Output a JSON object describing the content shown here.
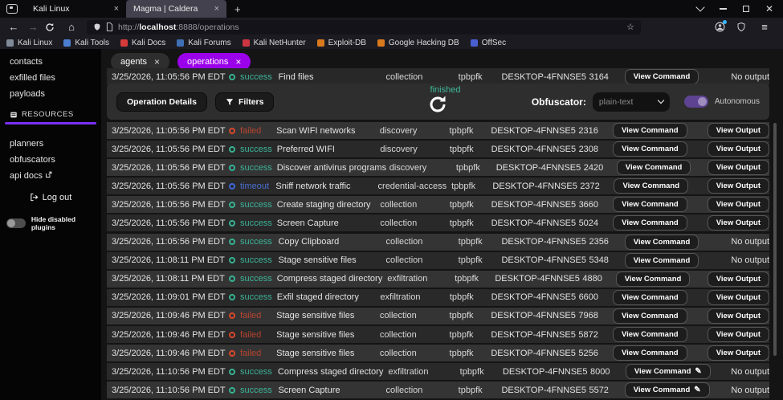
{
  "browser": {
    "tabs": [
      {
        "title": "Kali Linux"
      },
      {
        "title": "Magma | Caldera"
      }
    ],
    "new_tab_label": "+",
    "url": {
      "scheme": "http://",
      "host": "localhost",
      "path": ":8888/operations"
    },
    "bookmarks": [
      {
        "label": "Kali Linux",
        "color": "#7f8a99"
      },
      {
        "label": "Kali Tools",
        "color": "#4d7fd0"
      },
      {
        "label": "Kali Docs",
        "color": "#d63a3a"
      },
      {
        "label": "Kali Forums",
        "color": "#3f6fb5"
      },
      {
        "label": "Kali NetHunter",
        "color": "#cf3540"
      },
      {
        "label": "Exploit-DB",
        "color": "#d97a1e"
      },
      {
        "label": "Google Hacking DB",
        "color": "#d97a1e"
      },
      {
        "label": "OffSec",
        "color": "#4a5fd0"
      }
    ]
  },
  "sidebar": {
    "items": [
      "contacts",
      "exfilled files",
      "payloads"
    ],
    "section_title": "RESOURCES",
    "resources_items": [
      "planners",
      "obfuscators",
      "api docs"
    ],
    "logout_label": "Log out",
    "hide_plugins_label": "Hide disabled plugins"
  },
  "content": {
    "chips": [
      {
        "label": "agents",
        "active": false
      },
      {
        "label": "operations",
        "active": true
      }
    ],
    "toolbar": {
      "operation_details_label": "Operation Details",
      "filters_label": "Filters",
      "state_label": "finished",
      "obfuscator_label": "Obfuscator:",
      "obfuscator_value": "plain-text",
      "autonomous_label": "Autonomous"
    },
    "partial_row": {
      "time": "3/25/2026, 11:05:56 PM EDT",
      "status": "success",
      "ability": "Find files",
      "tactic": "collection",
      "agent": "tpbpfk",
      "host": "DESKTOP-4FNNSE5",
      "pid": "3164",
      "command": "View Command",
      "command_edit": false,
      "output_type": "text",
      "output": "No output"
    },
    "table": {
      "rows": [
        {
          "time": "3/25/2026, 11:05:56 PM EDT",
          "status": "failed",
          "ability": "Scan WIFI networks",
          "tactic": "discovery",
          "agent": "tpbpfk",
          "host": "DESKTOP-4FNNSE5",
          "pid": "2316",
          "command": "View Command",
          "command_edit": false,
          "output_type": "button",
          "output": "View Output"
        },
        {
          "time": "3/25/2026, 11:05:56 PM EDT",
          "status": "success",
          "ability": "Preferred WIFI",
          "tactic": "discovery",
          "agent": "tpbpfk",
          "host": "DESKTOP-4FNNSE5",
          "pid": "2308",
          "command": "View Command",
          "command_edit": false,
          "output_type": "button",
          "output": "View Output"
        },
        {
          "time": "3/25/2026, 11:05:56 PM EDT",
          "status": "success",
          "ability": "Discover antivirus programs",
          "tactic": "discovery",
          "agent": "tpbpfk",
          "host": "DESKTOP-4FNNSE5",
          "pid": "2420",
          "command": "View Command",
          "command_edit": false,
          "output_type": "button",
          "output": "View Output"
        },
        {
          "time": "3/25/2026, 11:05:56 PM EDT",
          "status": "timeout",
          "ability": "Sniff network traffic",
          "tactic": "credential-access",
          "agent": "tpbpfk",
          "host": "DESKTOP-4FNNSE5",
          "pid": "2372",
          "command": "View Command",
          "command_edit": false,
          "output_type": "button",
          "output": "View Output"
        },
        {
          "time": "3/25/2026, 11:05:56 PM EDT",
          "status": "success",
          "ability": "Create staging directory",
          "tactic": "collection",
          "agent": "tpbpfk",
          "host": "DESKTOP-4FNNSE5",
          "pid": "3660",
          "command": "View Command",
          "command_edit": false,
          "output_type": "button",
          "output": "View Output"
        },
        {
          "time": "3/25/2026, 11:05:56 PM EDT",
          "status": "success",
          "ability": "Screen Capture",
          "tactic": "collection",
          "agent": "tpbpfk",
          "host": "DESKTOP-4FNNSE5",
          "pid": "5024",
          "command": "View Command",
          "command_edit": false,
          "output_type": "button",
          "output": "View Output"
        },
        {
          "time": "3/25/2026, 11:05:56 PM EDT",
          "status": "success",
          "ability": "Copy Clipboard",
          "tactic": "collection",
          "agent": "tpbpfk",
          "host": "DESKTOP-4FNNSE5",
          "pid": "2356",
          "command": "View Command",
          "command_edit": false,
          "output_type": "text",
          "output": "No output"
        },
        {
          "time": "3/25/2026, 11:08:11 PM EDT",
          "status": "success",
          "ability": "Stage sensitive files",
          "tactic": "collection",
          "agent": "tpbpfk",
          "host": "DESKTOP-4FNNSE5",
          "pid": "5348",
          "command": "View Command",
          "command_edit": false,
          "output_type": "text",
          "output": "No output"
        },
        {
          "time": "3/25/2026, 11:08:11 PM EDT",
          "status": "success",
          "ability": "Compress staged directory",
          "tactic": "exfiltration",
          "agent": "tpbpfk",
          "host": "DESKTOP-4FNNSE5",
          "pid": "4880",
          "command": "View Command",
          "command_edit": false,
          "output_type": "button",
          "output": "View Output"
        },
        {
          "time": "3/25/2026, 11:09:01 PM EDT",
          "status": "success",
          "ability": "Exfil staged directory",
          "tactic": "exfiltration",
          "agent": "tpbpfk",
          "host": "DESKTOP-4FNNSE5",
          "pid": "6600",
          "command": "View Command",
          "command_edit": false,
          "output_type": "button",
          "output": "View Output"
        },
        {
          "time": "3/25/2026, 11:09:46 PM EDT",
          "status": "failed",
          "ability": "Stage sensitive files",
          "tactic": "collection",
          "agent": "tpbpfk",
          "host": "DESKTOP-4FNNSE5",
          "pid": "7968",
          "command": "View Command",
          "command_edit": false,
          "output_type": "button",
          "output": "View Output"
        },
        {
          "time": "3/25/2026, 11:09:46 PM EDT",
          "status": "failed",
          "ability": "Stage sensitive files",
          "tactic": "collection",
          "agent": "tpbpfk",
          "host": "DESKTOP-4FNNSE5",
          "pid": "5872",
          "command": "View Command",
          "command_edit": false,
          "output_type": "button",
          "output": "View Output"
        },
        {
          "time": "3/25/2026, 11:09:46 PM EDT",
          "status": "failed",
          "ability": "Stage sensitive files",
          "tactic": "collection",
          "agent": "tpbpfk",
          "host": "DESKTOP-4FNNSE5",
          "pid": "5256",
          "command": "View Command",
          "command_edit": false,
          "output_type": "button",
          "output": "View Output"
        },
        {
          "time": "3/25/2026, 11:10:56 PM EDT",
          "status": "success",
          "ability": "Compress staged directory",
          "tactic": "exfiltration",
          "agent": "tpbpfk",
          "host": "DESKTOP-4FNNSE5",
          "pid": "8000",
          "command": "View Command",
          "command_edit": true,
          "output_type": "text",
          "output": "No output"
        },
        {
          "time": "3/25/2026, 11:10:56 PM EDT",
          "status": "success",
          "ability": "Screen Capture",
          "tactic": "collection",
          "agent": "tpbpfk",
          "host": "DESKTOP-4FNNSE5",
          "pid": "5572",
          "command": "View Command",
          "command_edit": true,
          "output_type": "text",
          "output": "No output"
        }
      ]
    }
  },
  "colors": {
    "accent_purple": "#9b00ea",
    "sidebar_accent": "#7b2ff7",
    "success": "#35b393",
    "failed": "#d9472b",
    "timeout": "#3e68d8",
    "finished": "#3eb99a"
  }
}
